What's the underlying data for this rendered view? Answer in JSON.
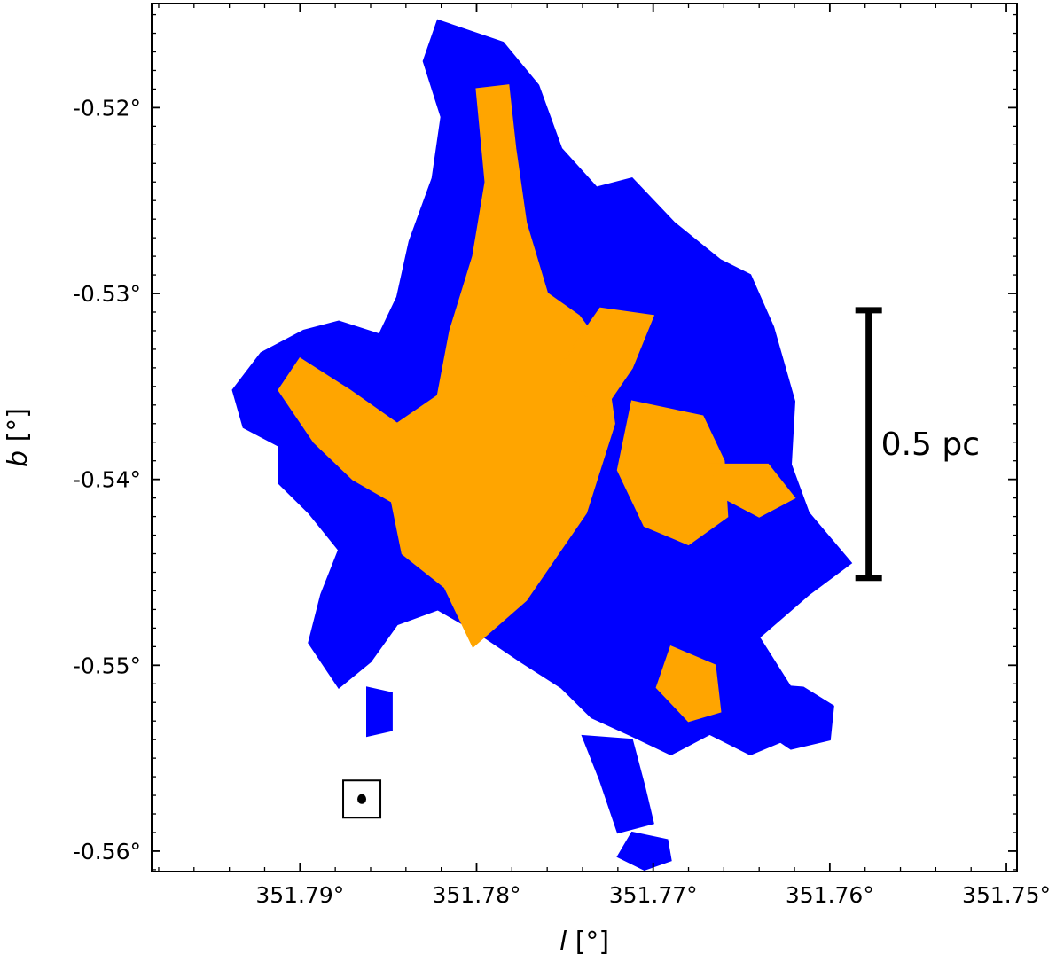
{
  "chart_data": {
    "type": "heatmap",
    "title": "",
    "xlabel": {
      "symbol": "l",
      "unit": "[°]"
    },
    "ylabel": {
      "symbol": "b",
      "unit": "[°]"
    },
    "xlim": [
      351.7984,
      351.7494
    ],
    "ylim": [
      -0.5611,
      -0.5144
    ],
    "x_ticks": [
      {
        "value": 351.79,
        "label": "351.79°"
      },
      {
        "value": 351.78,
        "label": "351.78°"
      },
      {
        "value": 351.77,
        "label": "351.77°"
      },
      {
        "value": 351.76,
        "label": "351.76°"
      },
      {
        "value": 351.75,
        "label": "351.75°"
      }
    ],
    "y_ticks": [
      {
        "value": -0.52,
        "label": "-0.52°"
      },
      {
        "value": -0.53,
        "label": "-0.53°"
      },
      {
        "value": -0.54,
        "label": "-0.54°"
      },
      {
        "value": -0.55,
        "label": "-0.55°"
      },
      {
        "value": -0.56,
        "label": "-0.56°"
      }
    ],
    "x_minor_step": 0.002,
    "y_minor_step": 0.001,
    "grid": false,
    "colors": {
      "region_a": "#0000ff",
      "region_b": "#ffa500"
    },
    "regions": [
      {
        "class": "region_a",
        "polygon": [
          [
            351.7822,
            -0.5153
          ],
          [
            351.7785,
            -0.5165
          ],
          [
            351.7765,
            -0.5188
          ],
          [
            351.7752,
            -0.5222
          ],
          [
            351.7732,
            -0.5243
          ],
          [
            351.7712,
            -0.5238
          ],
          [
            351.7688,
            -0.5262
          ],
          [
            351.7662,
            -0.5282
          ],
          [
            351.7645,
            -0.529
          ],
          [
            351.7632,
            -0.5318
          ],
          [
            351.762,
            -0.5358
          ],
          [
            351.7622,
            -0.5392
          ],
          [
            351.7612,
            -0.5418
          ],
          [
            351.7588,
            -0.5445
          ],
          [
            351.7612,
            -0.5462
          ],
          [
            351.764,
            -0.5485
          ],
          [
            351.7622,
            -0.5512
          ],
          [
            351.7625,
            -0.554
          ],
          [
            351.7645,
            -0.5548
          ],
          [
            351.7668,
            -0.5537
          ],
          [
            351.769,
            -0.5548
          ],
          [
            351.7712,
            -0.5538
          ],
          [
            351.7735,
            -0.5528
          ],
          [
            351.7752,
            -0.5512
          ],
          [
            351.7775,
            -0.5498
          ],
          [
            351.78,
            -0.5482
          ],
          [
            351.7822,
            -0.547
          ],
          [
            351.7845,
            -0.5478
          ],
          [
            351.786,
            -0.5498
          ],
          [
            351.7878,
            -0.5512
          ],
          [
            351.7895,
            -0.5488
          ],
          [
            351.7888,
            -0.5462
          ],
          [
            351.7878,
            -0.5438
          ],
          [
            351.7895,
            -0.5418
          ],
          [
            351.7912,
            -0.5402
          ],
          [
            351.7912,
            -0.5382
          ],
          [
            351.7932,
            -0.5372
          ],
          [
            351.7938,
            -0.5352
          ],
          [
            351.7922,
            -0.5332
          ],
          [
            351.7898,
            -0.532
          ],
          [
            351.7878,
            -0.5315
          ],
          [
            351.7855,
            -0.5322
          ],
          [
            351.7845,
            -0.5302
          ],
          [
            351.7838,
            -0.5272
          ],
          [
            351.7825,
            -0.5238
          ],
          [
            351.782,
            -0.5205
          ],
          [
            351.783,
            -0.5175
          ]
        ]
      },
      {
        "class": "region_a",
        "polygon": [
          [
            351.774,
            -0.5538
          ],
          [
            351.7712,
            -0.554
          ],
          [
            351.7705,
            -0.5565
          ],
          [
            351.77,
            -0.5585
          ],
          [
            351.772,
            -0.559
          ],
          [
            351.773,
            -0.5562
          ]
        ]
      },
      {
        "class": "region_a",
        "polygon": [
          [
            351.7712,
            -0.559
          ],
          [
            351.7692,
            -0.5594
          ],
          [
            351.769,
            -0.5605
          ],
          [
            351.7705,
            -0.561
          ],
          [
            351.772,
            -0.5603
          ]
        ]
      },
      {
        "class": "region_a",
        "polygon": [
          [
            351.764,
            -0.551
          ],
          [
            351.7615,
            -0.5512
          ],
          [
            351.7598,
            -0.5522
          ],
          [
            351.76,
            -0.554
          ],
          [
            351.7622,
            -0.5545
          ],
          [
            351.7642,
            -0.5532
          ]
        ]
      },
      {
        "class": "region_a",
        "polygon": [
          [
            351.7862,
            -0.5512
          ],
          [
            351.7848,
            -0.5515
          ],
          [
            351.7848,
            -0.5535
          ],
          [
            351.7862,
            -0.5538
          ]
        ]
      },
      {
        "class": "region_b",
        "polygon": [
          [
            351.78,
            -0.519
          ],
          [
            351.7782,
            -0.5188
          ],
          [
            351.7778,
            -0.5222
          ],
          [
            351.7772,
            -0.5262
          ],
          [
            351.776,
            -0.53
          ],
          [
            351.7742,
            -0.5312
          ],
          [
            351.7728,
            -0.533
          ],
          [
            351.7722,
            -0.537
          ],
          [
            351.7738,
            -0.5418
          ],
          [
            351.7772,
            -0.5465
          ],
          [
            351.7802,
            -0.549
          ],
          [
            351.7818,
            -0.5458
          ],
          [
            351.7842,
            -0.544
          ],
          [
            351.7848,
            -0.5412
          ],
          [
            351.787,
            -0.54
          ],
          [
            351.7892,
            -0.538
          ],
          [
            351.7912,
            -0.5352
          ],
          [
            351.79,
            -0.5335
          ],
          [
            351.7872,
            -0.5352
          ],
          [
            351.7845,
            -0.537
          ],
          [
            351.7822,
            -0.5355
          ],
          [
            351.7815,
            -0.532
          ],
          [
            351.7802,
            -0.528
          ],
          [
            351.7795,
            -0.524
          ]
        ]
      },
      {
        "class": "region_b",
        "polygon": [
          [
            351.773,
            -0.5308
          ],
          [
            351.77,
            -0.5312
          ],
          [
            351.7712,
            -0.534
          ],
          [
            351.773,
            -0.5365
          ],
          [
            351.7752,
            -0.5338
          ]
        ]
      },
      {
        "class": "region_b",
        "polygon": [
          [
            351.7712,
            -0.5358
          ],
          [
            351.7672,
            -0.5366
          ],
          [
            351.766,
            -0.539
          ],
          [
            351.7658,
            -0.542
          ],
          [
            351.768,
            -0.5435
          ],
          [
            351.7705,
            -0.5425
          ],
          [
            351.772,
            -0.5395
          ]
        ]
      },
      {
        "class": "region_b",
        "polygon": [
          [
            351.7668,
            -0.5392
          ],
          [
            351.7635,
            -0.5392
          ],
          [
            351.762,
            -0.541
          ],
          [
            351.764,
            -0.542
          ],
          [
            351.766,
            -0.541
          ]
        ]
      },
      {
        "class": "region_b",
        "polygon": [
          [
            351.769,
            -0.549
          ],
          [
            351.7665,
            -0.55
          ],
          [
            351.7662,
            -0.5525
          ],
          [
            351.768,
            -0.553
          ],
          [
            351.7698,
            -0.5512
          ]
        ]
      }
    ],
    "beam_marker": {
      "l": 351.7865,
      "b": -0.5572
    },
    "scale_bar": {
      "label": "0.5 pc",
      "l": 351.7578,
      "b_top": -0.5309,
      "b_bottom": -0.5453
    }
  }
}
